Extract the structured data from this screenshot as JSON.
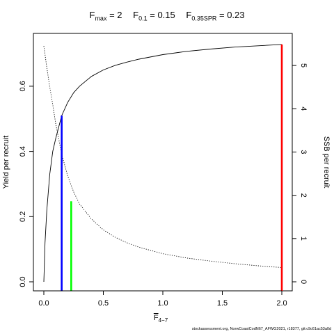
{
  "title_terms": [
    {
      "symbol": "F",
      "subscript": "max",
      "value": "= 2"
    },
    {
      "symbol": "F",
      "subscript": "0.1",
      "value": "= 0.15"
    },
    {
      "symbol": "F",
      "subscript": "0.35SPR",
      "value": "= 0.23"
    }
  ],
  "footer": "stockassessment.org, NorwCoastCodN67_AFWG2021, r18377, git:c9c61ac53a0d",
  "chart_data": {
    "type": "line",
    "xlabel": {
      "symbol": "F",
      "subscript": "4−7"
    },
    "ylabel_left": "Yield per recruit",
    "ylabel_right": "SSB per recruit",
    "xlim": [
      0,
      2
    ],
    "ylim_left": [
      0,
      0.73
    ],
    "ylim_right": [
      0,
      5.5
    ],
    "x_ticks": [
      "0.0",
      "0.5",
      "1.0",
      "1.5",
      "2.0"
    ],
    "y_ticks_left": [
      "0.0",
      "0.2",
      "0.4",
      "0.6"
    ],
    "y_ticks_right": [
      "0",
      "1",
      "2",
      "3",
      "4",
      "5"
    ],
    "grid": false,
    "series": [
      {
        "style": "solid",
        "axis": "left",
        "x": [
          0.0,
          0.01,
          0.025,
          0.05,
          0.075,
          0.1,
          0.15,
          0.2,
          0.25,
          0.3,
          0.4,
          0.5,
          0.6,
          0.7,
          0.8,
          1.0,
          1.2,
          1.4,
          1.6,
          1.8,
          2.0
        ],
        "y": [
          0.0,
          0.12,
          0.22,
          0.33,
          0.4,
          0.44,
          0.51,
          0.55,
          0.58,
          0.6,
          0.63,
          0.65,
          0.664,
          0.674,
          0.683,
          0.697,
          0.707,
          0.714,
          0.72,
          0.724,
          0.728
        ]
      },
      {
        "style": "dotted",
        "axis": "right",
        "x": [
          0.0,
          0.025,
          0.05,
          0.075,
          0.1,
          0.15,
          0.2,
          0.25,
          0.3,
          0.4,
          0.5,
          0.6,
          0.7,
          0.8,
          1.0,
          1.2,
          1.4,
          1.6,
          1.8,
          2.0
        ],
        "y": [
          5.45,
          4.95,
          4.5,
          4.1,
          3.65,
          2.95,
          2.45,
          2.08,
          1.8,
          1.45,
          1.2,
          1.03,
          0.9,
          0.8,
          0.65,
          0.55,
          0.48,
          0.42,
          0.37,
          0.33
        ]
      }
    ],
    "reference_lines": [
      {
        "x": 0.15,
        "y_top": 0.51,
        "color": "#0000ff"
      },
      {
        "x": 0.23,
        "y_top": 0.247,
        "color": "#00ff00"
      },
      {
        "x": 2.0,
        "y_top": 0.728,
        "color": "#ff0000"
      }
    ]
  }
}
